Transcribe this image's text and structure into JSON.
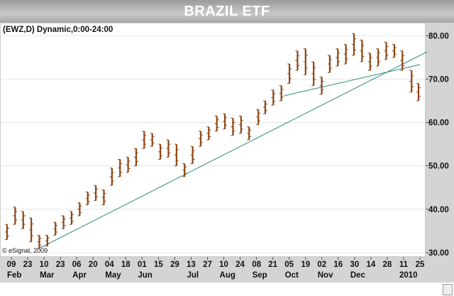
{
  "header": {
    "title": "BRAZIL ETF"
  },
  "chart_data": {
    "type": "bar",
    "style": "ohlc",
    "title": "BRAZIL ETF",
    "symbol_label": "(EWZ,D) Dynamic,0:00-24:00",
    "copyright": "© eSignal, 2009",
    "y_axis": {
      "side": "right",
      "ylim": [
        29,
        83
      ],
      "ticks": [
        "80.00",
        "70.00",
        "60.00",
        "50.00",
        "40.00",
        "30.00"
      ]
    },
    "x_day_ticks": [
      "09",
      "23",
      "10",
      "23",
      "06",
      "20",
      "04",
      "18",
      "01",
      "15",
      "29",
      "13",
      "27",
      "10",
      "24",
      "08",
      "21",
      "05",
      "19",
      "02",
      "16",
      "30",
      "14",
      "28",
      "11",
      "25"
    ],
    "x_month_labels": [
      "Feb",
      "Mar",
      "Apr",
      "May",
      "Jun",
      "Jul",
      "Aug",
      "Sep",
      "Oct",
      "Nov",
      "Dec",
      "2010"
    ],
    "x": [
      "2009-02-02",
      "2009-02-09",
      "2009-02-16",
      "2009-02-23",
      "2009-03-02",
      "2009-03-09",
      "2009-03-16",
      "2009-03-23",
      "2009-03-30",
      "2009-04-06",
      "2009-04-13",
      "2009-04-20",
      "2009-04-27",
      "2009-05-04",
      "2009-05-11",
      "2009-05-18",
      "2009-05-25",
      "2009-06-01",
      "2009-06-08",
      "2009-06-15",
      "2009-06-22",
      "2009-06-29",
      "2009-07-06",
      "2009-07-13",
      "2009-07-20",
      "2009-07-27",
      "2009-08-03",
      "2009-08-10",
      "2009-08-17",
      "2009-08-24",
      "2009-08-31",
      "2009-09-08",
      "2009-09-14",
      "2009-09-21",
      "2009-09-28",
      "2009-10-05",
      "2009-10-12",
      "2009-10-19",
      "2009-10-26",
      "2009-11-02",
      "2009-11-09",
      "2009-11-16",
      "2009-11-23",
      "2009-11-30",
      "2009-12-07",
      "2009-12-14",
      "2009-12-21",
      "2009-12-28",
      "2010-01-04",
      "2010-01-11",
      "2010-01-19",
      "2010-01-25"
    ],
    "high": [
      36.5,
      40.5,
      39.5,
      38.0,
      34.0,
      34.0,
      37.0,
      38.5,
      39.5,
      41.5,
      44.0,
      45.5,
      44.5,
      49.5,
      51.5,
      52.0,
      54.0,
      58.0,
      57.5,
      55.0,
      56.0,
      55.0,
      50.5,
      54.5,
      58.0,
      59.0,
      61.5,
      62.0,
      61.0,
      61.5,
      59.0,
      63.0,
      65.0,
      67.5,
      68.5,
      73.5,
      76.5,
      77.0,
      74.0,
      70.5,
      75.5,
      77.0,
      78.0,
      80.5,
      79.0,
      76.0,
      77.0,
      78.5,
      78.0,
      76.5,
      72.0,
      69.0
    ],
    "low": [
      33.0,
      36.5,
      35.5,
      32.5,
      31.0,
      31.5,
      34.0,
      35.5,
      36.5,
      38.5,
      41.0,
      42.0,
      41.0,
      45.5,
      47.5,
      48.5,
      50.0,
      54.0,
      54.5,
      51.5,
      52.0,
      50.0,
      47.5,
      50.5,
      54.5,
      56.0,
      58.0,
      58.5,
      57.0,
      57.5,
      56.0,
      59.5,
      62.0,
      64.0,
      65.0,
      69.0,
      72.0,
      71.0,
      68.5,
      66.5,
      71.5,
      73.0,
      73.5,
      75.5,
      74.0,
      72.0,
      73.0,
      74.5,
      75.0,
      72.0,
      67.0,
      65.0
    ]
  }
}
